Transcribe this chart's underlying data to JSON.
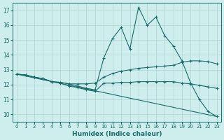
{
  "xlabel": "Humidex (Indice chaleur)",
  "background_color": "#ceeeed",
  "grid_color": "#aed4d4",
  "line_color": "#1a6b6b",
  "xlim": [
    -0.5,
    23.5
  ],
  "ylim": [
    9.5,
    17.5
  ],
  "xticks": [
    0,
    1,
    2,
    3,
    4,
    5,
    6,
    7,
    8,
    9,
    10,
    11,
    12,
    13,
    14,
    15,
    16,
    17,
    18,
    19,
    20,
    21,
    22,
    23
  ],
  "yticks": [
    10,
    11,
    12,
    13,
    14,
    15,
    16,
    17
  ],
  "lines": [
    {
      "x": [
        0,
        1,
        2,
        3,
        4,
        5,
        6,
        7,
        8,
        9,
        10,
        11,
        12,
        13,
        14,
        15,
        16,
        17,
        18,
        19,
        20,
        21,
        22,
        23
      ],
      "y": [
        12.7,
        12.65,
        12.5,
        12.4,
        12.2,
        12.15,
        12.05,
        11.9,
        11.75,
        11.65,
        13.8,
        15.1,
        15.85,
        14.4,
        17.2,
        16.0,
        16.55,
        15.3,
        14.6,
        13.6,
        12.1,
        11.0,
        10.2,
        9.85
      ],
      "marker": true
    },
    {
      "x": [
        0,
        1,
        2,
        3,
        4,
        5,
        6,
        7,
        8,
        9,
        10,
        11,
        12,
        13,
        14,
        15,
        16,
        17,
        18,
        19,
        20,
        21,
        22,
        23
      ],
      "y": [
        12.7,
        12.65,
        12.5,
        12.4,
        12.2,
        12.15,
        12.05,
        12.05,
        12.05,
        12.1,
        12.5,
        12.75,
        12.9,
        13.0,
        13.1,
        13.15,
        13.2,
        13.25,
        13.3,
        13.5,
        13.6,
        13.6,
        13.55,
        13.4
      ],
      "marker": true
    },
    {
      "x": [
        0,
        1,
        2,
        3,
        4,
        5,
        6,
        7,
        8,
        9,
        10,
        11,
        12,
        13,
        14,
        15,
        16,
        17,
        18,
        19,
        20,
        21,
        22,
        23
      ],
      "y": [
        12.7,
        12.65,
        12.5,
        12.4,
        12.2,
        12.1,
        11.9,
        11.8,
        11.65,
        11.55,
        12.1,
        12.1,
        12.15,
        12.15,
        12.2,
        12.2,
        12.2,
        12.2,
        12.2,
        12.1,
        12.05,
        11.95,
        11.85,
        11.75
      ],
      "marker": true
    },
    {
      "x": [
        0,
        23
      ],
      "y": [
        12.7,
        9.85
      ],
      "marker": false
    }
  ]
}
